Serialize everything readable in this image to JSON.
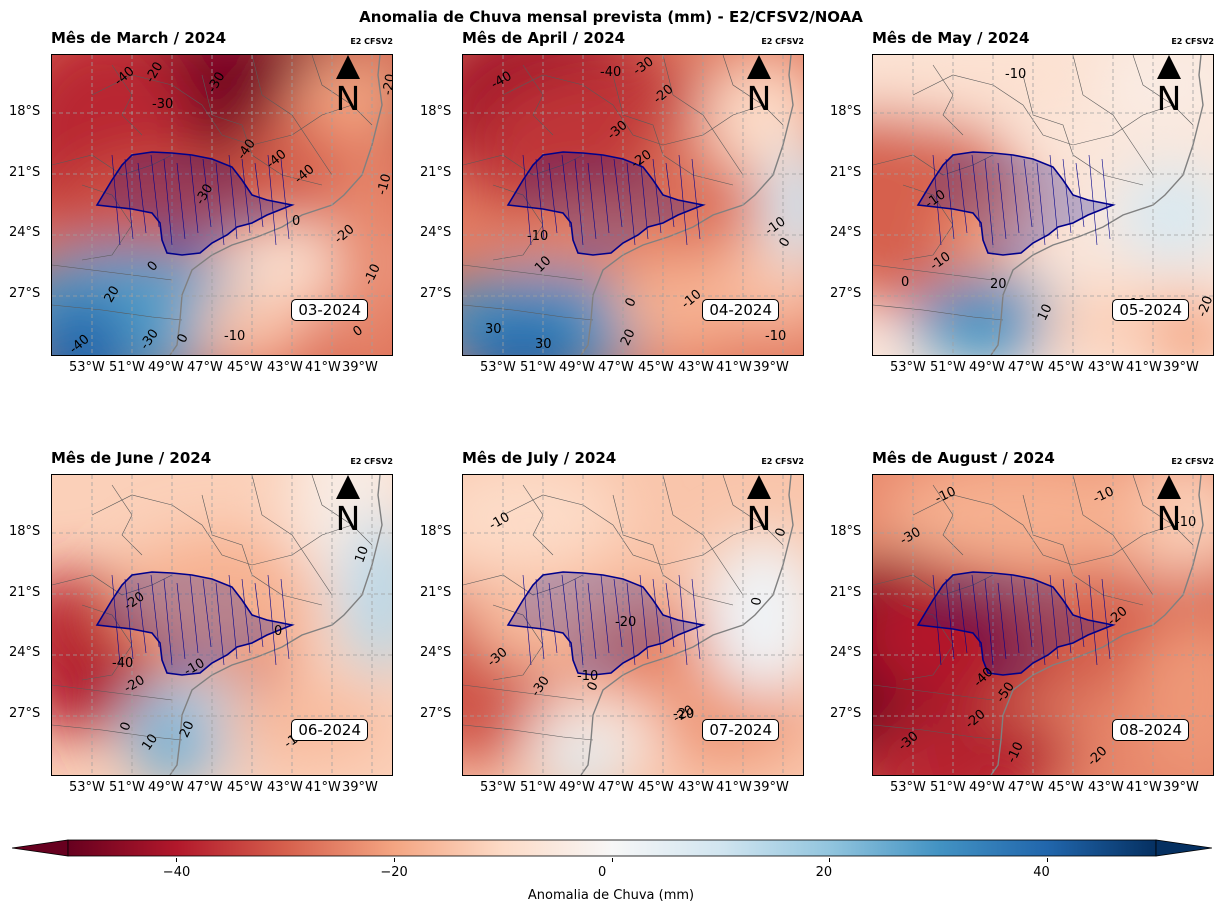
{
  "suptitle": "Anomalia de Chuva mensal prevista (mm) - E2/CFSV2/NOAA",
  "source_tag": "E2 CFSV2",
  "north_label": "N",
  "lat_labels": [
    "18°S",
    "21°S",
    "24°S",
    "27°S"
  ],
  "lon_labels": [
    "53°W",
    "51°W",
    "49°W",
    "47°W",
    "45°W",
    "43°W",
    "41°W",
    "39°W"
  ],
  "panels": [
    {
      "title": "Mês de March / 2024",
      "date": "03-2024",
      "contour_labels": [
        "-40",
        "-20",
        "-30",
        "-30",
        "-40",
        "-40",
        "-30",
        "-40",
        "-20",
        "-10",
        "0",
        "-20",
        "-10",
        "0",
        "20",
        "0",
        "-30",
        "-40",
        "-10",
        "0"
      ]
    },
    {
      "title": "Mês de April / 2024",
      "date": "04-2024",
      "contour_labels": [
        "-40",
        "-40",
        "-30",
        "-20",
        "-30",
        "-20",
        "-10",
        "-10",
        "10",
        "0",
        "-10",
        "0",
        "-10",
        "20",
        "30",
        "30"
      ]
    },
    {
      "title": "Mês de May / 2024",
      "date": "05-2024",
      "contour_labels": [
        "-10",
        "-10",
        "-10",
        "20",
        "10",
        "0",
        "-10",
        "-20"
      ]
    },
    {
      "title": "Mês de June / 2024",
      "date": "06-2024",
      "contour_labels": [
        "10",
        "-20",
        "0",
        "-40",
        "-20",
        "-10",
        "0",
        "10",
        "20",
        "-10"
      ]
    },
    {
      "title": "Mês de July / 2024",
      "date": "07-2024",
      "contour_labels": [
        "-10",
        "0",
        "0",
        "-30",
        "-30",
        "-20",
        "-10",
        "0",
        "-20",
        "-20"
      ]
    },
    {
      "title": "Mês de August / 2024",
      "date": "08-2024",
      "contour_labels": [
        "-10",
        "-10",
        "-30",
        "-10",
        "-20",
        "-40",
        "-50",
        "-20",
        "-30",
        "-10",
        "-20"
      ]
    }
  ],
  "colorbar": {
    "label": "Anomalia de Chuva (mm)",
    "ticks": [
      "−40",
      "−20",
      "0",
      "20",
      "40"
    ],
    "tick_values": [
      -40,
      -20,
      0,
      20,
      40
    ],
    "range": [
      -50,
      50
    ],
    "colormap": "RdBu",
    "extend": "both"
  },
  "colors": {
    "state_border": "#00008b",
    "coast": "#808080",
    "grid": "#a0a0a0"
  }
}
